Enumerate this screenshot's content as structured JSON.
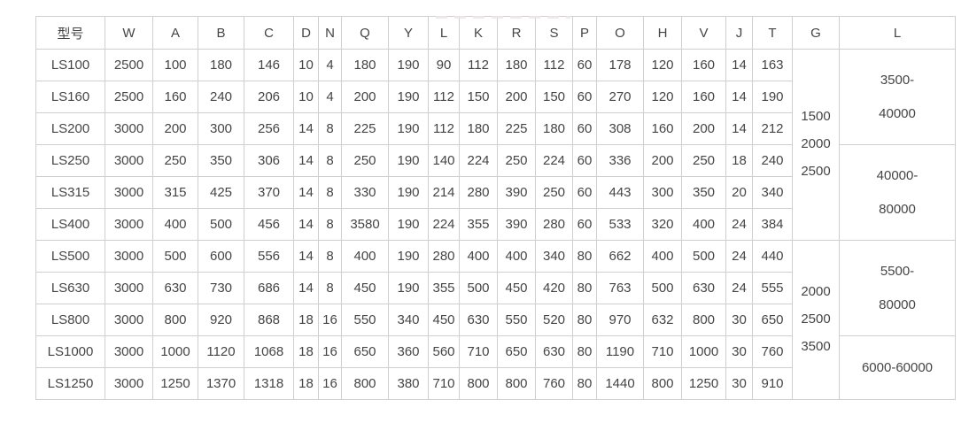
{
  "colors": {
    "background": "#ffffff",
    "table_border": "#cfcfcf",
    "table_text": "#454545"
  },
  "chart_data": {
    "type": "table",
    "title": "",
    "columns": [
      "型号",
      "W",
      "A",
      "B",
      "C",
      "D",
      "N",
      "Q",
      "Y",
      "L",
      "K",
      "R",
      "S",
      "P",
      "O",
      "H",
      "V",
      "J",
      "T",
      "G",
      "L"
    ],
    "rows": [
      [
        "LS100",
        "2500",
        "100",
        "180",
        "146",
        "10",
        "4",
        "180",
        "190",
        "90",
        "112",
        "180",
        "112",
        "60",
        "178",
        "120",
        "160",
        "14",
        "163"
      ],
      [
        "LS160",
        "2500",
        "160",
        "240",
        "206",
        "10",
        "4",
        "200",
        "190",
        "112",
        "150",
        "200",
        "150",
        "60",
        "270",
        "120",
        "160",
        "14",
        "190"
      ],
      [
        "LS200",
        "3000",
        "200",
        "300",
        "256",
        "14",
        "8",
        "225",
        "190",
        "112",
        "180",
        "225",
        "180",
        "60",
        "308",
        "160",
        "200",
        "14",
        "212"
      ],
      [
        "LS250",
        "3000",
        "250",
        "350",
        "306",
        "14",
        "8",
        "250",
        "190",
        "140",
        "224",
        "250",
        "224",
        "60",
        "336",
        "200",
        "250",
        "18",
        "240"
      ],
      [
        "LS315",
        "3000",
        "315",
        "425",
        "370",
        "14",
        "8",
        "330",
        "190",
        "214",
        "280",
        "390",
        "250",
        "60",
        "443",
        "300",
        "350",
        "20",
        "340"
      ],
      [
        "LS400",
        "3000",
        "400",
        "500",
        "456",
        "14",
        "8",
        "3580",
        "190",
        "224",
        "355",
        "390",
        "280",
        "60",
        "533",
        "320",
        "400",
        "24",
        "384"
      ],
      [
        "LS500",
        "3000",
        "500",
        "600",
        "556",
        "14",
        "8",
        "400",
        "190",
        "280",
        "400",
        "400",
        "340",
        "80",
        "662",
        "400",
        "500",
        "24",
        "440"
      ],
      [
        "LS630",
        "3000",
        "630",
        "730",
        "686",
        "14",
        "8",
        "450",
        "190",
        "355",
        "500",
        "450",
        "420",
        "80",
        "763",
        "500",
        "630",
        "24",
        "555"
      ],
      [
        "LS800",
        "3000",
        "800",
        "920",
        "868",
        "18",
        "16",
        "550",
        "340",
        "450",
        "630",
        "550",
        "520",
        "80",
        "970",
        "632",
        "800",
        "30",
        "650"
      ],
      [
        "LS1000",
        "3000",
        "1000",
        "1120",
        "1068",
        "18",
        "16",
        "650",
        "360",
        "560",
        "710",
        "650",
        "630",
        "80",
        "1190",
        "710",
        "1000",
        "30",
        "760"
      ],
      [
        "LS1250",
        "3000",
        "1250",
        "1370",
        "1318",
        "18",
        "16",
        "800",
        "380",
        "710",
        "800",
        "800",
        "760",
        "80",
        "1440",
        "800",
        "1250",
        "30",
        "910"
      ]
    ],
    "merged_g_column": [
      {
        "start_model": "LS100",
        "span": 6,
        "lines": [
          "1500",
          "2000",
          "2500"
        ]
      },
      {
        "start_model": "LS500",
        "span": 5,
        "lines": [
          "2000",
          "2500",
          "3500"
        ]
      }
    ],
    "merged_l_column": [
      {
        "start_model": "LS100",
        "span": 3,
        "lines": [
          "3500-",
          "40000"
        ]
      },
      {
        "start_model": "LS250",
        "span": 3,
        "lines": [
          "40000-",
          "80000"
        ]
      },
      {
        "start_model": "LS500",
        "span": 3,
        "lines": [
          "5500-",
          "80000"
        ]
      },
      {
        "start_model": "LS1000",
        "span": 2,
        "lines": [
          "6000-60000"
        ]
      }
    ],
    "layout": {
      "grid": "full borders",
      "header_position": "top row",
      "merged_columns": [
        "G",
        "L"
      ]
    }
  }
}
